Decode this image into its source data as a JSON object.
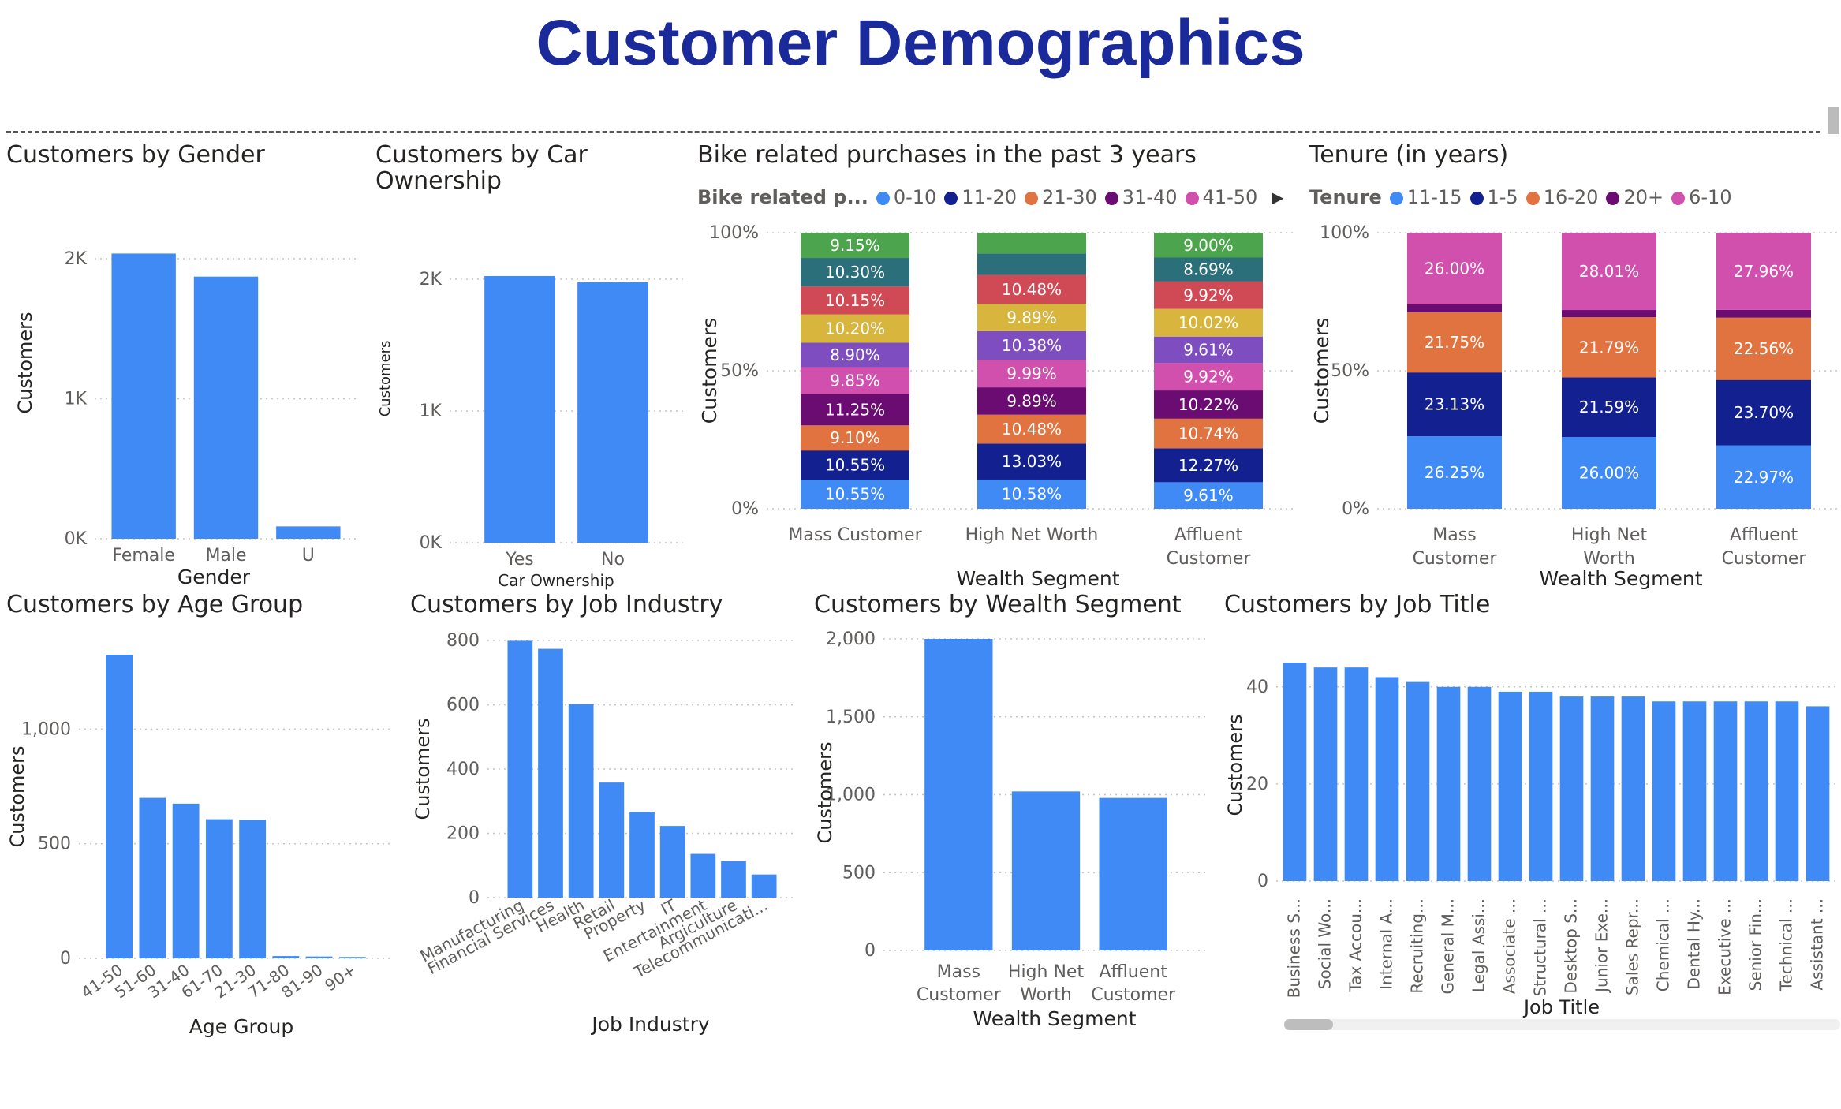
{
  "page": {
    "title": "Customer Demographics"
  },
  "colors": {
    "bar": "#3f8af5",
    "title": "#1b2a9b"
  },
  "chart_data": [
    {
      "id": "gender",
      "type": "bar",
      "title": "Customers by Gender",
      "xlabel": "Gender",
      "ylabel": "Customers",
      "categories": [
        "Female",
        "Male",
        "U"
      ],
      "values": [
        2037,
        1872,
        88
      ],
      "ylim": [
        0,
        2000
      ],
      "yticks": [
        0,
        1000,
        2000
      ],
      "ytick_labels": [
        "0K",
        "1K",
        "2K"
      ]
    },
    {
      "id": "car",
      "type": "bar",
      "title": "Customers by Car Ownership",
      "xlabel": "Car Ownership",
      "ylabel": "Customers",
      "categories": [
        "Yes",
        "No"
      ],
      "values": [
        2024,
        1976
      ],
      "ylim": [
        0,
        2000
      ],
      "yticks": [
        0,
        1000,
        2000
      ],
      "ytick_labels": [
        "0K",
        "1K",
        "2K"
      ]
    },
    {
      "id": "bike",
      "type": "bar",
      "stacked": "100%",
      "title": "Bike related purchases in the past 3 years",
      "legend_title": "Bike related p...",
      "xlabel": "Wealth Segment",
      "ylabel": "Customers",
      "categories": [
        "Mass Customer",
        "High Net Worth",
        "Affluent Customer"
      ],
      "ytick_labels": [
        "0%",
        "50%",
        "100%"
      ],
      "legend": [
        {
          "name": "0-10",
          "color": "#3f8af5"
        },
        {
          "name": "11-20",
          "color": "#13208f"
        },
        {
          "name": "21-30",
          "color": "#e0733f"
        },
        {
          "name": "31-40",
          "color": "#6b0c73"
        },
        {
          "name": "41-50",
          "color": "#d150ad"
        }
      ],
      "series": [
        {
          "name": "0-10",
          "color": "#3f8af5",
          "values": [
            10.55,
            10.58,
            9.61
          ]
        },
        {
          "name": "11-20",
          "color": "#13208f",
          "values": [
            10.55,
            13.03,
            12.27
          ]
        },
        {
          "name": "21-30",
          "color": "#e0733f",
          "values": [
            9.1,
            10.48,
            10.74
          ]
        },
        {
          "name": "31-40",
          "color": "#6b0c73",
          "values": [
            11.25,
            9.89,
            10.22
          ]
        },
        {
          "name": "41-50",
          "color": "#d150ad",
          "values": [
            9.85,
            9.99,
            9.92
          ]
        },
        {
          "color": "#7e4ec0",
          "values": [
            8.9,
            10.38,
            9.61
          ]
        },
        {
          "color": "#d8b53c",
          "values": [
            10.2,
            9.89,
            10.02
          ]
        },
        {
          "color": "#d04a55",
          "values": [
            10.15,
            10.48,
            9.92
          ]
        },
        {
          "color": "#2b6f7a",
          "values": [
            10.3,
            7.8,
            8.69
          ]
        },
        {
          "color": "#4ca54c",
          "values": [
            9.15,
            7.5,
            9.0
          ]
        }
      ],
      "labels": [
        [
          "10.55%",
          "10.58%",
          "9.61%"
        ],
        [
          "10.55%",
          "13.03%",
          "12.27%"
        ],
        [
          "9.10%",
          "10.48%",
          "10.74%"
        ],
        [
          "11.25%",
          "9.89%",
          "10.22%"
        ],
        [
          "9.85%",
          "9.99%",
          "9.92%"
        ],
        [
          "8.90%",
          "10.38%",
          "9.61%"
        ],
        [
          "10.20%",
          "9.89%",
          "10.02%"
        ],
        [
          "10.15%",
          "10.48%",
          "9.92%"
        ],
        [
          "10.30%",
          "",
          "8.69%"
        ],
        [
          "9.15%",
          "",
          "9.00%"
        ]
      ]
    },
    {
      "id": "tenure",
      "type": "bar",
      "stacked": "100%",
      "title": "Tenure (in years)",
      "legend_title": "Tenure",
      "xlabel": "Wealth Segment",
      "ylabel": "Customers",
      "categories": [
        "Mass Customer",
        "High Net Worth",
        "Affluent Customer"
      ],
      "ytick_labels": [
        "0%",
        "50%",
        "100%"
      ],
      "legend": [
        {
          "name": "11-15",
          "color": "#3f8af5"
        },
        {
          "name": "1-5",
          "color": "#13208f"
        },
        {
          "name": "16-20",
          "color": "#e0733f"
        },
        {
          "name": "20+",
          "color": "#6b0c73"
        },
        {
          "name": "6-10",
          "color": "#d150ad"
        }
      ],
      "series": [
        {
          "name": "11-15",
          "color": "#3f8af5",
          "values": [
            26.25,
            26.0,
            22.97
          ]
        },
        {
          "name": "1-5",
          "color": "#13208f",
          "values": [
            23.13,
            21.59,
            23.7
          ]
        },
        {
          "name": "16-20",
          "color": "#e0733f",
          "values": [
            21.75,
            21.79,
            22.56
          ]
        },
        {
          "name": "20+",
          "color": "#6b0c73",
          "values": [
            2.87,
            2.61,
            2.81
          ]
        },
        {
          "name": "6-10",
          "color": "#d150ad",
          "values": [
            26.0,
            28.01,
            27.96
          ]
        }
      ],
      "labels": [
        [
          "26.25%",
          "26.00%",
          "22.97%"
        ],
        [
          "23.13%",
          "21.59%",
          "23.70%"
        ],
        [
          "21.75%",
          "21.79%",
          "22.56%"
        ],
        [
          "",
          "",
          ""
        ],
        [
          "26.00%",
          "28.01%",
          "27.96%"
        ]
      ]
    },
    {
      "id": "age",
      "type": "bar",
      "title": "Customers by Age Group",
      "xlabel": "Age Group",
      "ylabel": "Customers",
      "categories": [
        "41-50",
        "51-60",
        "31-40",
        "61-70",
        "21-30",
        "71-80",
        "81-90",
        "90+"
      ],
      "values": [
        1325,
        700,
        675,
        607,
        604,
        10,
        8,
        6
      ],
      "ylim": [
        0,
        1325
      ],
      "yticks": [
        0,
        500,
        1000
      ],
      "ytick_labels": [
        "0",
        "500",
        "1,000"
      ]
    },
    {
      "id": "industry",
      "type": "bar",
      "title": "Customers by Job Industry",
      "xlabel": "Job Industry",
      "ylabel": "Customers",
      "categories": [
        "Manufacturing",
        "Financial Services",
        "Health",
        "Retail",
        "Property",
        "IT",
        "Entertainment",
        "Argiculture",
        "Telecommunicati..."
      ],
      "values": [
        799,
        774,
        602,
        358,
        267,
        223,
        136,
        113,
        72
      ],
      "ylim": [
        0,
        800
      ],
      "yticks": [
        0,
        200,
        400,
        600,
        800
      ],
      "ytick_labels": [
        "0",
        "200",
        "400",
        "600",
        "800"
      ]
    },
    {
      "id": "wealth",
      "type": "bar",
      "title": "Customers by Wealth Segment",
      "xlabel": "Wealth Segment",
      "ylabel": "Customers",
      "categories": [
        "Mass Customer",
        "High Net Worth",
        "Affluent Customer"
      ],
      "values": [
        2000,
        1021,
        979
      ],
      "ylim": [
        0,
        2000
      ],
      "yticks": [
        0,
        500,
        1000,
        1500,
        2000
      ],
      "ytick_labels": [
        "0",
        "500",
        "1,000",
        "1,500",
        "2,000"
      ]
    },
    {
      "id": "jobtitle",
      "type": "bar",
      "title": "Customers by Job Title",
      "xlabel": "Job Title",
      "ylabel": "Customers",
      "categories": [
        "Business S...",
        "Social Wo...",
        "Tax Accou...",
        "Internal A...",
        "Recruiting...",
        "General M...",
        "Legal Assi...",
        "Associate ...",
        "Structural ...",
        "Desktop S...",
        "Junior Exe...",
        "Sales Repr...",
        "Chemical ...",
        "Dental Hy...",
        "Executive ...",
        "Senior Fin...",
        "Technical ...",
        "Assistant ..."
      ],
      "values": [
        45,
        44,
        44,
        42,
        41,
        40,
        40,
        39,
        39,
        38,
        38,
        38,
        37,
        37,
        37,
        37,
        37,
        36
      ],
      "ylim": [
        0,
        45
      ],
      "yticks": [
        0,
        20,
        40
      ],
      "ytick_labels": [
        "0",
        "20",
        "40"
      ]
    }
  ]
}
